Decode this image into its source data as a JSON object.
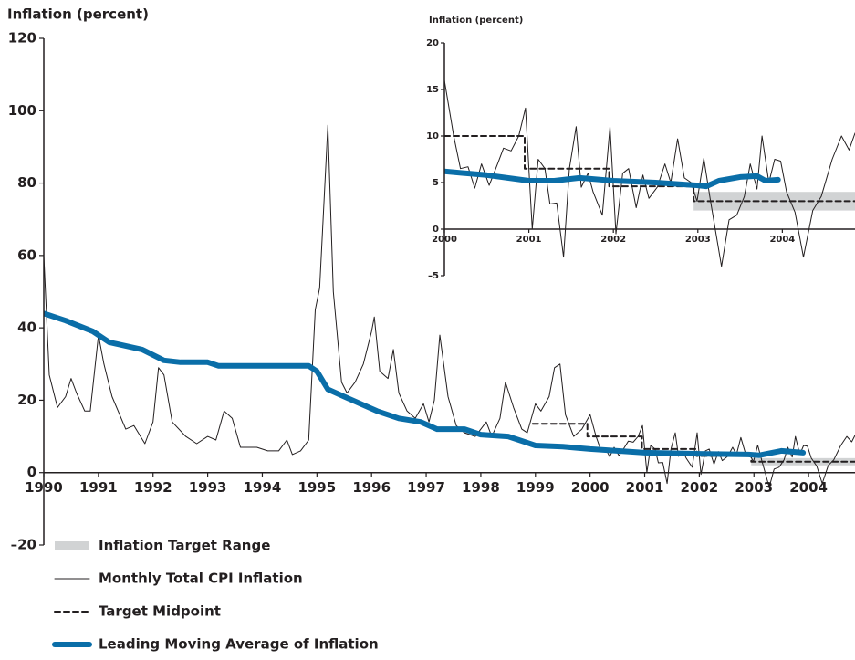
{
  "chart_data": [
    {
      "type": "line",
      "title": "Inflation (percent)",
      "xlim": [
        1990,
        2004.85
      ],
      "ylim": [
        -20,
        120
      ],
      "xticks": [
        1990,
        1991,
        1992,
        1993,
        1994,
        1995,
        1996,
        1997,
        1998,
        1999,
        2000,
        2001,
        2002,
        2003,
        2004
      ],
      "yticks": [
        {
          "value": -20,
          "label": "–20"
        },
        0,
        20,
        40,
        60,
        80,
        100,
        120
      ],
      "legend": "bottom-left",
      "series": [
        {
          "name": "Inflation Target Range",
          "style": "band",
          "color": "#d1d3d4",
          "x": [
            2002.95,
            2004.85
          ],
          "low": [
            2,
            2
          ],
          "high": [
            4,
            4
          ]
        },
        {
          "name": "Monthly Total CPI Inflation",
          "style": "thin",
          "color": "#231f20",
          "x": [
            1990.0,
            1990.1,
            1990.25,
            1990.4,
            1990.5,
            1990.6,
            1990.75,
            1990.85,
            1991.0,
            1991.1,
            1991.25,
            1991.5,
            1991.65,
            1991.85,
            1992.0,
            1992.1,
            1992.2,
            1992.35,
            1992.6,
            1992.8,
            1993.0,
            1993.15,
            1993.3,
            1993.45,
            1993.6,
            1993.9,
            1994.1,
            1994.3,
            1994.45,
            1994.55,
            1994.7,
            1994.85,
            1994.97,
            1995.05,
            1995.2,
            1995.3,
            1995.45,
            1995.55,
            1995.7,
            1995.85,
            1996.0,
            1996.05,
            1996.15,
            1996.3,
            1996.4,
            1996.5,
            1996.65,
            1996.8,
            1996.95,
            1997.05,
            1997.15,
            1997.25,
            1997.4,
            1997.55,
            1997.7,
            1997.9,
            1998.1,
            1998.2,
            1998.35,
            1998.45,
            1998.6,
            1998.75,
            1998.85,
            1999.0,
            1999.1,
            1999.25,
            1999.35,
            1999.45,
            1999.55,
            1999.7,
            1999.85,
            2000.0,
            2000.11,
            2000.19,
            2000.28,
            2000.36,
            2000.44,
            2000.53,
            2000.63,
            2000.7,
            2000.79,
            2000.88,
            2000.96,
            2001.04,
            2001.11,
            2001.19,
            2001.25,
            2001.33,
            2001.41,
            2001.48,
            2001.56,
            2001.62,
            2001.7,
            2001.76,
            2001.87,
            2001.96,
            2002.03,
            2002.11,
            2002.18,
            2002.27,
            2002.35,
            2002.42,
            2002.52,
            2002.61,
            2002.68,
            2002.76,
            2002.84,
            2002.92,
            2002.99,
            2003.07,
            2003.15,
            2003.28,
            2003.37,
            2003.46,
            2003.55,
            2003.62,
            2003.7,
            2003.76,
            2003.84,
            2003.91,
            2003.98,
            2004.05,
            2004.15,
            2004.25,
            2004.36,
            2004.46,
            2004.59,
            2004.7,
            2004.79,
            2004.85
          ],
          "values": [
            60,
            27,
            18,
            21,
            26,
            22,
            17,
            17,
            38,
            30,
            21,
            12,
            13,
            8,
            14,
            29,
            27,
            14,
            10,
            8,
            10,
            9,
            17,
            15,
            7,
            7,
            6,
            6,
            9,
            5,
            6,
            9,
            45,
            51,
            96,
            50,
            25,
            22,
            25,
            30,
            39,
            43,
            28,
            26,
            34,
            22,
            17,
            15,
            19,
            14,
            20,
            38,
            21,
            13,
            11,
            10,
            14,
            10,
            15,
            25,
            18,
            12,
            11,
            19,
            17,
            21,
            29,
            30,
            16,
            10,
            12,
            16,
            10,
            6.5,
            6.7,
            4.4,
            7,
            4.7,
            7,
            8.7,
            8.4,
            10,
            13,
            0,
            7.5,
            6.5,
            2.7,
            2.8,
            -3,
            6.5,
            11,
            4.5,
            6,
            4,
            1.5,
            11,
            -0.5,
            6,
            6.5,
            2.3,
            5.8,
            3.3,
            4.5,
            7,
            5,
            9.7,
            5.5,
            5,
            3,
            7.6,
            3,
            -4,
            1,
            1.5,
            3.5,
            7,
            4.3,
            10,
            5,
            7.5,
            7.3,
            4,
            1.8,
            -3,
            2,
            3.5,
            7.5,
            10,
            8.5,
            10.3
          ]
        },
        {
          "name": "Target Midpoint",
          "style": "dashed",
          "color": "#231f20",
          "x": [
            1998.95,
            1999.95,
            1999.95,
            2000.95,
            2000.95,
            2001.95,
            2001.95,
            2002.95,
            2002.95,
            2004.85
          ],
          "values": [
            13.5,
            13.5,
            10,
            10,
            6.5,
            6.5,
            4.6,
            4.6,
            3,
            3
          ]
        },
        {
          "name": "Leading Moving Average of Inflation",
          "style": "thick",
          "color": "#0a6ea8",
          "x": [
            1990.0,
            1990.4,
            1990.9,
            1991.2,
            1991.8,
            1992.2,
            1992.5,
            1993.0,
            1993.2,
            1994.7,
            1994.85,
            1995.0,
            1995.2,
            1995.5,
            1995.8,
            1996.1,
            1996.5,
            1996.9,
            1997.2,
            1997.7,
            1998.0,
            1998.5,
            1998.8,
            1999.0,
            1999.5,
            2000.0,
            2000.5,
            2001.0,
            2002.0,
            2002.9,
            2003.1,
            2003.5,
            2003.9
          ],
          "values": [
            44,
            42,
            39,
            36,
            34,
            31,
            30.5,
            30.5,
            29.5,
            29.5,
            29.5,
            28,
            23,
            21,
            19,
            17,
            15,
            14,
            12,
            12,
            10.5,
            10,
            8.5,
            7.5,
            7.2,
            6.5,
            6,
            5.5,
            5.2,
            5,
            4.8,
            6,
            5.5
          ]
        }
      ]
    },
    {
      "type": "line",
      "title": "Inflation (percent)",
      "xlim": [
        2000,
        2004.86
      ],
      "ylim": [
        -5,
        20
      ],
      "xticks": [
        2000,
        2001,
        2002,
        2003,
        2004
      ],
      "yticks": [
        {
          "value": -5,
          "label": "–5"
        },
        0,
        5,
        10,
        15,
        20
      ],
      "series": [
        {
          "style": "band",
          "color": "#d1d3d4",
          "x": [
            2002.95,
            2004.86
          ],
          "low": [
            2,
            2
          ],
          "high": [
            4,
            4
          ]
        },
        {
          "style": "thin",
          "color": "#231f20",
          "x": [
            2000.0,
            2000.11,
            2000.19,
            2000.28,
            2000.36,
            2000.44,
            2000.53,
            2000.63,
            2000.7,
            2000.79,
            2000.88,
            2000.96,
            2001.04,
            2001.11,
            2001.19,
            2001.25,
            2001.33,
            2001.41,
            2001.48,
            2001.56,
            2001.62,
            2001.7,
            2001.76,
            2001.87,
            2001.96,
            2002.03,
            2002.11,
            2002.18,
            2002.27,
            2002.35,
            2002.42,
            2002.52,
            2002.61,
            2002.68,
            2002.76,
            2002.84,
            2002.92,
            2002.99,
            2003.07,
            2003.15,
            2003.28,
            2003.37,
            2003.46,
            2003.55,
            2003.62,
            2003.7,
            2003.76,
            2003.84,
            2003.91,
            2003.98,
            2004.05,
            2004.15,
            2004.25,
            2004.36,
            2004.46,
            2004.59,
            2004.7,
            2004.79,
            2004.86
          ],
          "values": [
            16,
            10,
            6.5,
            6.7,
            4.4,
            7,
            4.7,
            7,
            8.7,
            8.4,
            10,
            13,
            0,
            7.5,
            6.5,
            2.7,
            2.8,
            -3,
            6.5,
            11,
            4.5,
            6,
            4,
            1.5,
            11,
            -0.5,
            6,
            6.5,
            2.3,
            5.8,
            3.3,
            4.5,
            7,
            5,
            9.7,
            5.5,
            5,
            3,
            7.6,
            3,
            -4,
            1,
            1.5,
            3.5,
            7,
            4.3,
            10,
            5,
            7.5,
            7.3,
            4,
            1.8,
            -3,
            2,
            3.5,
            7.5,
            10,
            8.5,
            10.3
          ]
        },
        {
          "style": "dashed",
          "color": "#231f20",
          "x": [
            2000,
            2000.95,
            2000.95,
            2001.95,
            2001.95,
            2002.95,
            2002.95,
            2004.86
          ],
          "values": [
            10,
            10,
            6.5,
            6.5,
            4.6,
            4.6,
            3,
            3
          ]
        },
        {
          "style": "thick",
          "color": "#0a6ea8",
          "x": [
            2000.0,
            2000.5,
            2001.0,
            2001.3,
            2001.6,
            2002.0,
            2002.5,
            2003.0,
            2003.1,
            2003.25,
            2003.5,
            2003.7,
            2003.8,
            2003.95
          ],
          "values": [
            6.2,
            5.8,
            5.2,
            5.2,
            5.5,
            5.2,
            5.0,
            4.7,
            4.6,
            5.2,
            5.6,
            5.7,
            5.2,
            5.3
          ]
        }
      ]
    }
  ]
}
